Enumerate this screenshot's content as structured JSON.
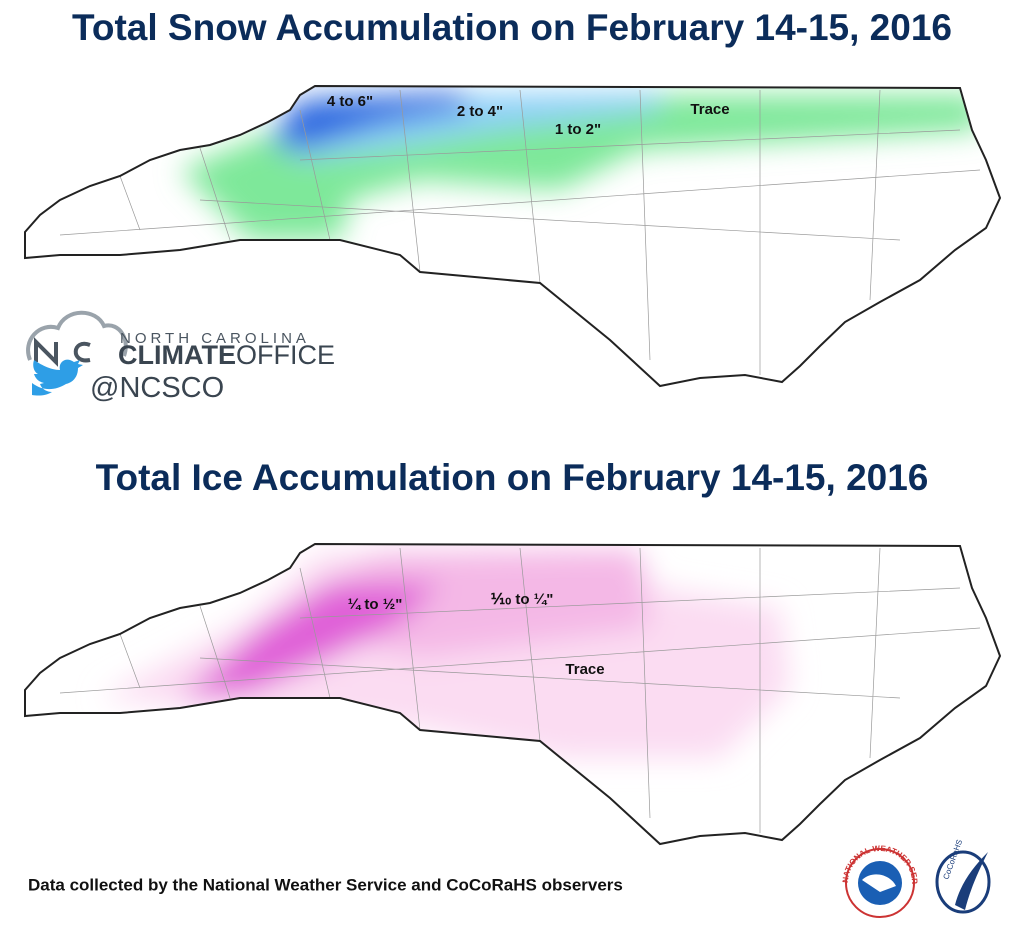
{
  "snow_map": {
    "title": "Total Snow Accumulation on February 14-15, 2016",
    "labels": [
      "4 to 6\"",
      "2 to 4\"",
      "1 to 2\"",
      "Trace"
    ]
  },
  "logo": {
    "line1": "NORTH CAROLINA",
    "line2a": "CLIMATE",
    "line2b": "OFFICE",
    "twitter": "@NCSCO"
  },
  "ice_map": {
    "title": "Total Ice Accumulation on February 14-15, 2016",
    "labels": [
      "¼ to ½\"",
      "⅒ to ¼\"",
      "Trace"
    ]
  },
  "footer": {
    "text": "Data collected by the National Weather Service and CoCoRaHS observers",
    "logo1": "NATIONAL WEATHER SERVICE",
    "logo2": "CoCoRaHS"
  }
}
